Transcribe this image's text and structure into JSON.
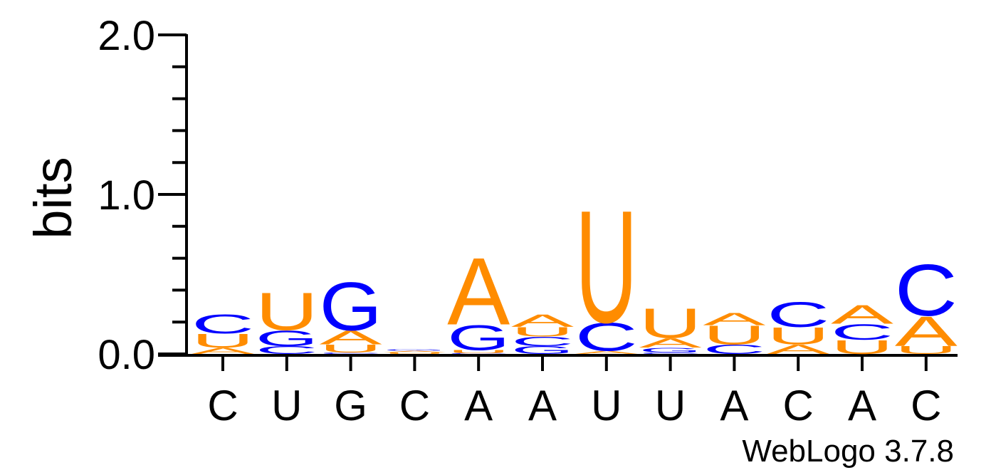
{
  "chart_data": {
    "type": "sequence-logo",
    "ylabel": "bits",
    "ylim": [
      0,
      2
    ],
    "yticks": [
      "0.0",
      "1.0",
      "2.0"
    ],
    "footer": "WebLogo 3.7.8",
    "colors": {
      "A": "#ff8c00",
      "U": "#ff8c00",
      "G": "#0000ff",
      "C": "#0000ff"
    },
    "positions": [
      {
        "label": "C",
        "stack": [
          {
            "base": "A",
            "bits": 0.04
          },
          {
            "base": "U",
            "bits": 0.09
          },
          {
            "base": "C",
            "bits": 0.12
          }
        ]
      },
      {
        "label": "U",
        "stack": [
          {
            "base": "C",
            "bits": 0.05
          },
          {
            "base": "G",
            "bits": 0.1
          },
          {
            "base": "U",
            "bits": 0.24
          }
        ]
      },
      {
        "label": "G",
        "stack": [
          {
            "base": "C",
            "bits": 0.01
          },
          {
            "base": "U",
            "bits": 0.05
          },
          {
            "base": "A",
            "bits": 0.09
          },
          {
            "base": "G",
            "bits": 0.31
          }
        ]
      },
      {
        "label": "C",
        "stack": [
          {
            "base": "U",
            "bits": 0.01
          },
          {
            "base": "A",
            "bits": 0.01
          },
          {
            "base": "G",
            "bits": 0.01
          }
        ]
      },
      {
        "label": "A",
        "stack": [
          {
            "base": "C",
            "bits": 0.005
          },
          {
            "base": "U",
            "bits": 0.02
          },
          {
            "base": "G",
            "bits": 0.16
          },
          {
            "base": "A",
            "bits": 0.43
          }
        ]
      },
      {
        "label": "A",
        "stack": [
          {
            "base": "G",
            "bits": 0.05
          },
          {
            "base": "C",
            "bits": 0.06
          },
          {
            "base": "U",
            "bits": 0.06
          },
          {
            "base": "A",
            "bits": 0.08
          }
        ]
      },
      {
        "label": "U",
        "stack": [
          {
            "base": "A",
            "bits": 0.02
          },
          {
            "base": "C",
            "bits": 0.18
          },
          {
            "base": "U",
            "bits": 0.72
          }
        ]
      },
      {
        "label": "U",
        "stack": [
          {
            "base": "C",
            "bits": 0.01
          },
          {
            "base": "G",
            "bits": 0.03
          },
          {
            "base": "A",
            "bits": 0.06
          },
          {
            "base": "U",
            "bits": 0.19
          }
        ]
      },
      {
        "label": "A",
        "stack": [
          {
            "base": "C",
            "bits": 0.06
          },
          {
            "base": "U",
            "bits": 0.12
          },
          {
            "base": "A",
            "bits": 0.08
          }
        ]
      },
      {
        "label": "C",
        "stack": [
          {
            "base": "A",
            "bits": 0.06
          },
          {
            "base": "U",
            "bits": 0.11
          },
          {
            "base": "C",
            "bits": 0.16
          }
        ]
      },
      {
        "label": "A",
        "stack": [
          {
            "base": "U",
            "bits": 0.09
          },
          {
            "base": "C",
            "bits": 0.1
          },
          {
            "base": "A",
            "bits": 0.12
          }
        ]
      },
      {
        "label": "C",
        "stack": [
          {
            "base": "U",
            "bits": 0.05
          },
          {
            "base": "A",
            "bits": 0.19
          },
          {
            "base": "C",
            "bits": 0.33
          }
        ]
      }
    ]
  }
}
